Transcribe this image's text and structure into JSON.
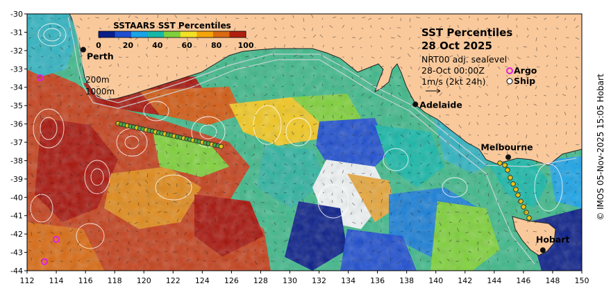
{
  "map": {
    "legend_title": "SSTAARS SST Percentiles",
    "legend_ticks": [
      "0",
      "20",
      "40",
      "60",
      "80",
      "100"
    ],
    "legend_colors": [
      "#0b1f8a",
      "#1f4fcf",
      "#1aa3e6",
      "#17b8a8",
      "#7fd13b",
      "#f2e125",
      "#f5a50a",
      "#d96a12",
      "#b02010"
    ],
    "title_line1": "SST Percentiles",
    "title_line2": "28 Oct 2025",
    "subtitle": "NRT00 adj. sealevel",
    "time": "28-Oct 00:00Z",
    "current_scale": "1m/s (2kt 24h)",
    "argo_label": "Argo",
    "ship_label": "Ship",
    "contour_200": "200m",
    "contour_1000": "1000m",
    "cities": [
      {
        "name": "Perth",
        "lon": 115.85,
        "lat": -31.95
      },
      {
        "name": "Adelaide",
        "lon": 138.6,
        "lat": -34.93
      },
      {
        "name": "Melbourne",
        "lon": 144.96,
        "lat": -37.81
      },
      {
        "name": "Hobart",
        "lon": 147.33,
        "lat": -42.88
      }
    ],
    "x_ticks": [
      "112",
      "114",
      "116",
      "118",
      "120",
      "122",
      "124",
      "126",
      "128",
      "130",
      "132",
      "134",
      "136",
      "138",
      "140",
      "142",
      "144",
      "146",
      "148",
      "150"
    ],
    "y_ticks": [
      "-30",
      "-31",
      "-32",
      "-33",
      "-34",
      "-35",
      "-36",
      "-37",
      "-38",
      "-39",
      "-40",
      "-41",
      "-42",
      "-43",
      "-44"
    ],
    "copyright": "© IMOS 05-Nov-2025 15:05 Hobart",
    "land_color": "#f9c99c",
    "argo_color": "#e020e0"
  }
}
